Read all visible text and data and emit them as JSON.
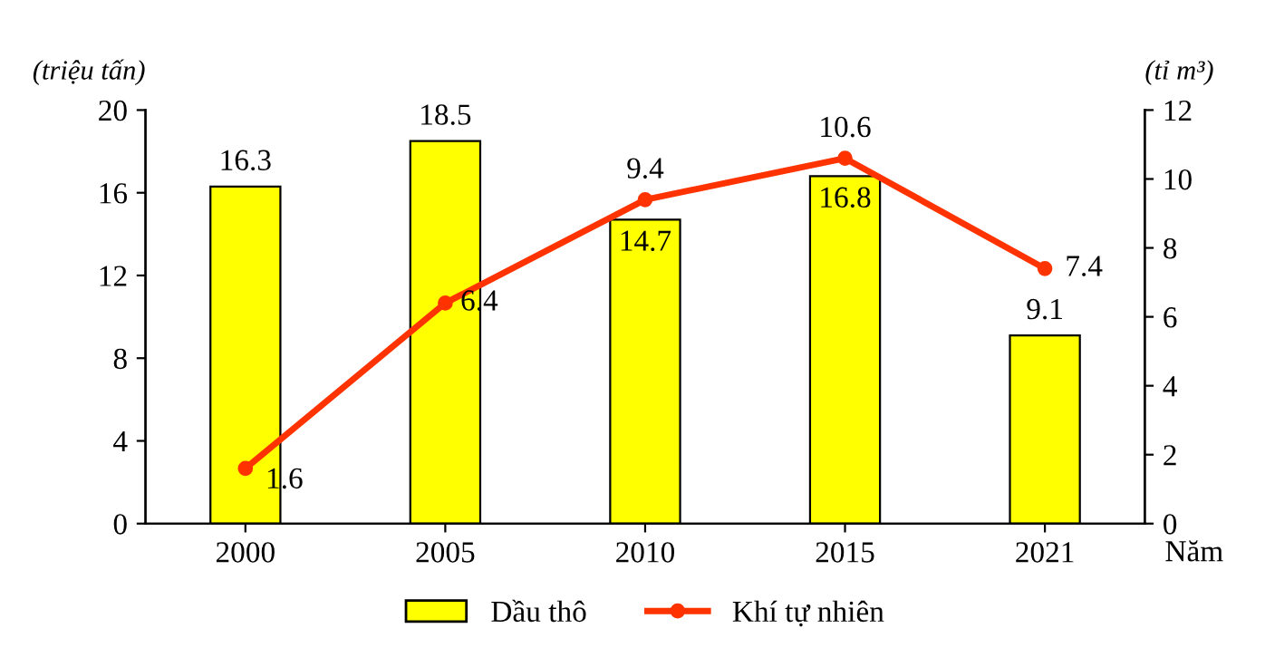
{
  "chart_data": {
    "type": "bar",
    "categories": [
      "2000",
      "2005",
      "2010",
      "2015",
      "2021"
    ],
    "series": [
      {
        "name": "Dầu thô",
        "color": "#ffff00",
        "values": [
          16.3,
          18.5,
          14.7,
          16.8,
          9.1
        ]
      },
      {
        "name": "Khí tự nhiên",
        "type": "line",
        "axis": "y2",
        "color": "#ff3300",
        "values": [
          1.6,
          6.4,
          9.4,
          10.6,
          7.4
        ]
      }
    ],
    "ylabel": "(triệu tấn)",
    "y2label": "(tỉ m³)",
    "xlabel": "Năm",
    "ylim": [
      0,
      20
    ],
    "yticks": [
      0,
      4,
      8,
      12,
      16,
      20
    ],
    "y2lim": [
      0,
      12
    ],
    "y2ticks": [
      0,
      2,
      4,
      6,
      8,
      10,
      12
    ],
    "data_labels": true,
    "grid": false,
    "legend": "bottom",
    "marker": "circle",
    "line_style": "solid"
  }
}
